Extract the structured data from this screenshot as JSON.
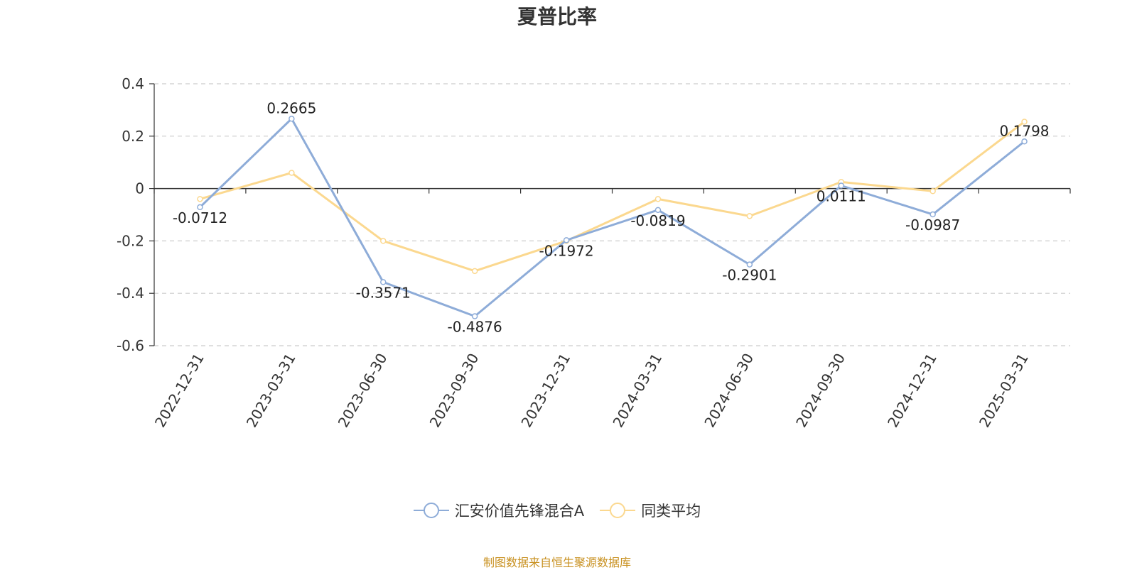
{
  "title": "夏普比率",
  "source_note": "制图数据来自恒生聚源数据库",
  "chart_data": {
    "type": "line",
    "title": "夏普比率",
    "categories": [
      "2022-12-31",
      "2023-03-31",
      "2023-06-30",
      "2023-09-30",
      "2023-12-31",
      "2024-03-31",
      "2024-06-30",
      "2024-09-30",
      "2024-12-31",
      "2025-03-31"
    ],
    "ylim": [
      -0.6,
      0.4
    ],
    "yticks": [
      0.4,
      0.2,
      0,
      -0.2,
      -0.4,
      -0.6
    ],
    "ytick_labels": [
      "0.4",
      "0.2",
      "0",
      "-0.2",
      "-0.4",
      "-0.6"
    ],
    "grid": true,
    "legend_position": "bottom-center",
    "series": [
      {
        "name": "汇安价值先锋混合A",
        "color": "#8eacd8",
        "values": [
          -0.0712,
          0.2665,
          -0.3571,
          -0.4876,
          -0.1972,
          -0.0819,
          -0.2901,
          0.0111,
          -0.0987,
          0.1798
        ],
        "labels": [
          "-0.0712",
          "0.2665",
          "-0.3571",
          "-0.4876",
          "-0.1972",
          "-0.0819",
          "-0.2901",
          "0.0111",
          "-0.0987",
          "0.1798"
        ]
      },
      {
        "name": "同类平均",
        "color": "#fbd88f",
        "values": [
          -0.04,
          0.06,
          -0.2,
          -0.315,
          -0.2,
          -0.04,
          -0.105,
          0.025,
          -0.01,
          0.255
        ]
      }
    ]
  }
}
